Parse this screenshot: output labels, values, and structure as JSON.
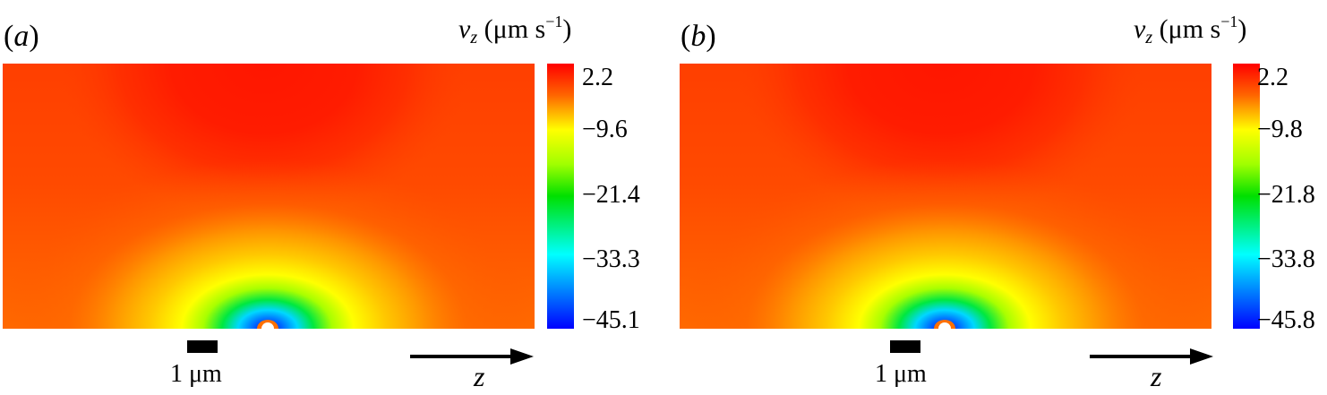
{
  "panels": [
    {
      "label_letter": "a",
      "colorbar_title_var": "v",
      "colorbar_title_sub": "z",
      "colorbar_title_unit": "(μm s",
      "colorbar_title_exp": "−1",
      "colorbar_title_close": ")",
      "ticks": [
        "2.2",
        "−9.6",
        "−21.4",
        "−33.3",
        "−45.1"
      ],
      "scale_bar_label": "1 μm",
      "axis_label": "z"
    },
    {
      "label_letter": "b",
      "colorbar_title_var": "v",
      "colorbar_title_sub": "z",
      "colorbar_title_unit": "(μm s",
      "colorbar_title_exp": "−1",
      "colorbar_title_close": ")",
      "ticks": [
        "2.2",
        "−9.8",
        "−21.8",
        "−33.8",
        "−45.8"
      ],
      "scale_bar_label": "1 μm",
      "axis_label": "z"
    }
  ],
  "chart_data": [
    {
      "type": "heatmap",
      "title": "(a)",
      "colorbar_label": "v_z (μm s−1)",
      "colorbar_ticks": [
        2.2,
        -9.6,
        -21.4,
        -33.3,
        -45.1
      ],
      "value_range": [
        -45.1,
        2.2
      ],
      "colormap": "jet",
      "scale_bar": "1 μm",
      "axis_direction_label": "z"
    },
    {
      "type": "heatmap",
      "title": "(b)",
      "colorbar_label": "v_z (μm s−1)",
      "colorbar_ticks": [
        2.2,
        -9.8,
        -21.8,
        -33.8,
        -45.8
      ],
      "value_range": [
        -45.8,
        2.2
      ],
      "colormap": "jet",
      "scale_bar": "1 μm",
      "axis_direction_label": "z"
    }
  ],
  "colors": {
    "jet_top": "#ff0000",
    "jet_mid_yellow": "#ffff00",
    "jet_mid_green": "#00e000",
    "jet_mid_cyan": "#00ffff",
    "jet_bottom": "#0000ff"
  }
}
